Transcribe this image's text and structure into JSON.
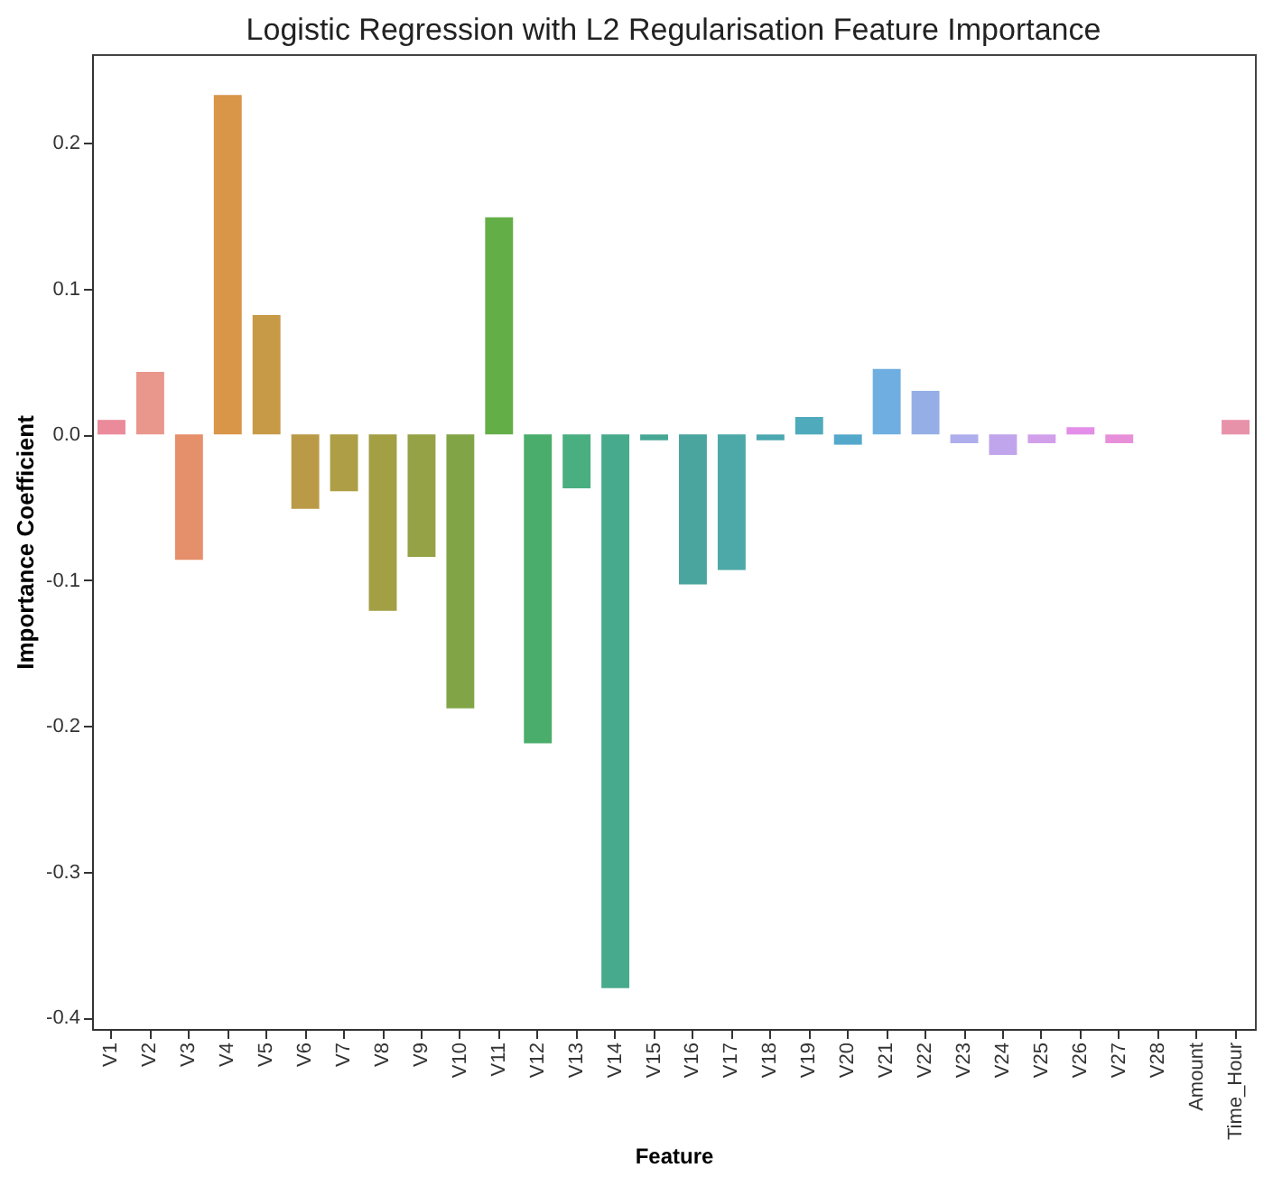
{
  "chart_data": {
    "type": "bar",
    "title": "Logistic Regression with L2 Regularisation Feature Importance",
    "xlabel": "Feature",
    "ylabel": "Importance Coefficient",
    "categories": [
      "V1",
      "V2",
      "V3",
      "V4",
      "V5",
      "V6",
      "V7",
      "V8",
      "V9",
      "V10",
      "V11",
      "V12",
      "V13",
      "V14",
      "V15",
      "V16",
      "V17",
      "V18",
      "V19",
      "V20",
      "V21",
      "V22",
      "V23",
      "V24",
      "V25",
      "V26",
      "V27",
      "V28",
      "Amount",
      "Time_Hour"
    ],
    "values": [
      0.01,
      0.043,
      -0.086,
      0.233,
      0.082,
      -0.051,
      -0.039,
      -0.121,
      -0.084,
      -0.188,
      0.149,
      -0.212,
      -0.037,
      -0.38,
      -0.004,
      -0.103,
      -0.093,
      -0.004,
      0.012,
      -0.007,
      0.045,
      0.03,
      -0.006,
      -0.014,
      -0.006,
      0.005,
      -0.006,
      0,
      0,
      0.01
    ],
    "colors": [
      "#ea8a9a",
      "#e9968d",
      "#e68f6b",
      "#d99548",
      "#c79a48",
      "#bb9a47",
      "#ae9e45",
      "#a29f45",
      "#96a246",
      "#81a546",
      "#64ae48",
      "#4bad6b",
      "#4aaf80",
      "#48aa8c",
      "#47a795",
      "#4aa59e",
      "#4ca9a8",
      "#4ca8b0",
      "#4faabc",
      "#53a8cc",
      "#6eaee0",
      "#95afe6",
      "#aeaeed",
      "#c0a5ec",
      "#d2a0eb",
      "#e38ee8",
      "#e790d9",
      "#e98fc8",
      "#ea8cb8",
      "#e892aa"
    ],
    "ylim": [
      -0.408,
      0.261
    ],
    "yticks": [
      {
        "value": -0.4,
        "label": "-0.4"
      },
      {
        "value": -0.3,
        "label": "-0.3"
      },
      {
        "value": -0.2,
        "label": "-0.2"
      },
      {
        "value": -0.1,
        "label": "-0.1"
      },
      {
        "value": 0,
        "label": "0.0"
      },
      {
        "value": 0.1,
        "label": "0.1"
      },
      {
        "value": 0.2,
        "label": "0.2"
      }
    ],
    "grid": false
  }
}
